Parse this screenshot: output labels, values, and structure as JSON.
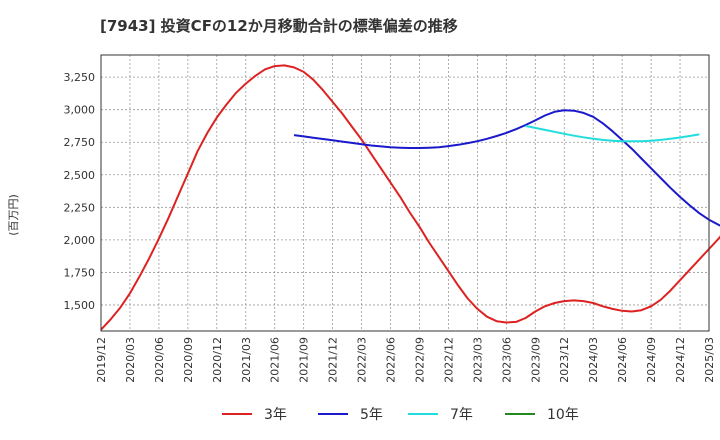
{
  "chart_data": {
    "type": "line",
    "title": "[7943]  投資CFの12か月移動合計の標準偏差の推移",
    "ylabel": "(百万円)",
    "xlabel": "",
    "x_ticks": [
      "2019/12",
      "2020/03",
      "2020/06",
      "2020/09",
      "2020/12",
      "2021/03",
      "2021/06",
      "2021/09",
      "2021/12",
      "2022/03",
      "2022/06",
      "2022/09",
      "2022/12",
      "2023/03",
      "2023/06",
      "2023/09",
      "2023/12",
      "2024/03",
      "2024/06",
      "2024/09",
      "2024/12",
      "2025/03"
    ],
    "y_ticks": [
      1500,
      1750,
      2000,
      2250,
      2500,
      2750,
      3000,
      3250
    ],
    "y_tick_labels": [
      "1,500",
      "1,750",
      "2,000",
      "2,250",
      "2,500",
      "2,750",
      "3,000",
      "3,250"
    ],
    "ylim": [
      1300,
      3420
    ],
    "grid": true,
    "legend_position": "bottom",
    "series": [
      {
        "name": "3年",
        "color": "#dd2222",
        "start": "2019/12",
        "values": [
          1310,
          1390,
          1480,
          1590,
          1720,
          1860,
          2010,
          2170,
          2340,
          2510,
          2680,
          2820,
          2940,
          3040,
          3130,
          3200,
          3260,
          3310,
          3335,
          3340,
          3325,
          3290,
          3230,
          3150,
          3060,
          2970,
          2870,
          2770,
          2660,
          2550,
          2440,
          2330,
          2210,
          2100,
          1980,
          1870,
          1760,
          1650,
          1550,
          1470,
          1410,
          1375,
          1365,
          1370,
          1400,
          1450,
          1490,
          1515,
          1530,
          1535,
          1530,
          1515,
          1490,
          1470,
          1455,
          1450,
          1460,
          1490,
          1540,
          1610,
          1690,
          1770,
          1850,
          1930,
          2010,
          2100,
          2190
        ]
      },
      {
        "name": "5年",
        "color": "#1a1acc",
        "start": "2021/08",
        "values": [
          2805,
          2795,
          2785,
          2775,
          2765,
          2755,
          2745,
          2735,
          2725,
          2718,
          2712,
          2708,
          2706,
          2706,
          2708,
          2712,
          2720,
          2730,
          2743,
          2758,
          2776,
          2798,
          2822,
          2850,
          2882,
          2918,
          2955,
          2984,
          2995,
          2992,
          2975,
          2945,
          2895,
          2835,
          2768,
          2700,
          2625,
          2550,
          2475,
          2400,
          2330,
          2265,
          2205,
          2155,
          2115,
          2085,
          2062,
          2050,
          2048,
          2055
        ]
      },
      {
        "name": "7年",
        "color": "#22dddd",
        "start": "2023/08",
        "values": [
          2875,
          2860,
          2845,
          2830,
          2815,
          2800,
          2788,
          2777,
          2768,
          2762,
          2758,
          2757,
          2758,
          2762,
          2768,
          2776,
          2786,
          2798,
          2810
        ]
      },
      {
        "name": "10年",
        "color": "#228822",
        "start": "2019/12",
        "values": []
      }
    ]
  }
}
